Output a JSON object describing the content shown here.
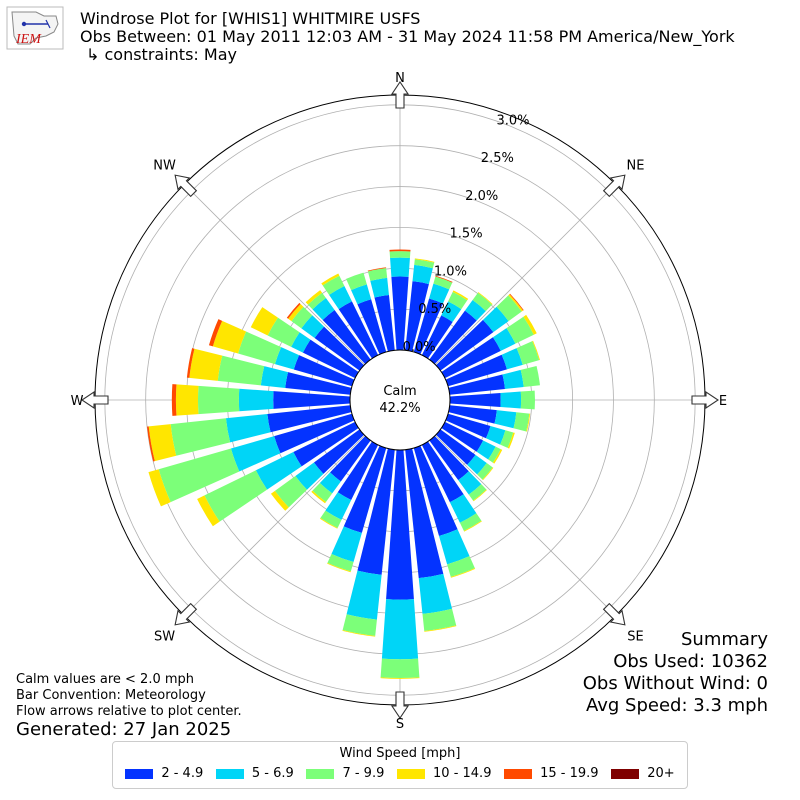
{
  "header": {
    "logo_text": "IEM",
    "title": "Windrose Plot for [WHIS1] WHITMIRE USFS",
    "subtitle": "Obs Between: 01 May 2011 12:03 AM - 31 May 2024 11:58 PM America/New_York",
    "constraints": "↳ constraints: May"
  },
  "notes": {
    "line1": "Calm values are < 2.0 mph",
    "line2": "Bar Convention: Meteorology",
    "line3": "Flow arrows relative to plot center.",
    "generated": "Generated: 27 Jan 2025"
  },
  "summary": {
    "heading": "Summary",
    "obs_used": "Obs Used: 10362",
    "obs_without_wind": "Obs Without Wind: 0",
    "avg_speed": "Avg Speed: 3.3 mph"
  },
  "legend": {
    "title": "Wind Speed [mph]",
    "items": [
      {
        "label": "2 - 4.9",
        "color": "#0433ff"
      },
      {
        "label": "5 - 6.9",
        "color": "#00d5f7"
      },
      {
        "label": "7 - 9.9",
        "color": "#7cff79"
      },
      {
        "label": "10 - 14.9",
        "color": "#ffe600"
      },
      {
        "label": "15 - 19.9",
        "color": "#ff4a00"
      },
      {
        "label": "20+",
        "color": "#7f0000"
      }
    ]
  },
  "chart_data": {
    "type": "windrose",
    "calm_label": "Calm",
    "calm_value": "42.2%",
    "radial_ticks": [
      "0.0%",
      "0.5%",
      "1.0%",
      "1.5%",
      "2.0%",
      "2.5%",
      "3.0%"
    ],
    "radial_tick_values": [
      0,
      0.5,
      1.0,
      1.5,
      2.0,
      2.5,
      3.0
    ],
    "rmax": 3.12,
    "direction_labels": [
      "N",
      "NE",
      "E",
      "SE",
      "S",
      "SW",
      "W",
      "NW"
    ],
    "directions_deg": [
      0,
      10,
      20,
      30,
      40,
      50,
      60,
      70,
      80,
      90,
      100,
      110,
      120,
      130,
      140,
      150,
      160,
      170,
      180,
      190,
      200,
      210,
      220,
      230,
      240,
      250,
      260,
      270,
      280,
      290,
      300,
      310,
      320,
      330,
      340,
      350
    ],
    "speed_bins": [
      "2 - 4.9",
      "5 - 6.9",
      "7 - 9.9",
      "10 - 14.9",
      "15 - 19.9",
      "20+"
    ],
    "cumulative_percent": [
      [
        0.9,
        1.13,
        1.21,
        1.21,
        1.23,
        1.23
      ],
      [
        0.85,
        1.05,
        1.12,
        1.13,
        1.13,
        1.13
      ],
      [
        0.68,
        0.87,
        0.96,
        0.96,
        0.97,
        0.97
      ],
      [
        0.54,
        0.73,
        0.86,
        0.88,
        0.88,
        0.88
      ],
      [
        0.74,
        0.9,
        1.01,
        1.02,
        1.02,
        1.02
      ],
      [
        0.8,
        1.03,
        1.23,
        1.25,
        1.26,
        1.26
      ],
      [
        0.76,
        0.96,
        1.21,
        1.25,
        1.25,
        1.25
      ],
      [
        0.75,
        0.95,
        1.16,
        1.17,
        1.17,
        1.17
      ],
      [
        0.68,
        0.91,
        1.11,
        1.11,
        1.11,
        1.11
      ],
      [
        0.62,
        0.87,
        1.04,
        1.04,
        1.04,
        1.04
      ],
      [
        0.58,
        0.82,
        0.98,
        0.99,
        0.99,
        0.99
      ],
      [
        0.54,
        0.73,
        0.83,
        0.85,
        0.85,
        0.85
      ],
      [
        0.52,
        0.69,
        0.76,
        0.78,
        0.78,
        0.78
      ],
      [
        0.53,
        0.7,
        0.79,
        0.8,
        0.8,
        0.8
      ],
      [
        0.6,
        0.82,
        0.91,
        0.92,
        0.92,
        0.92
      ],
      [
        0.78,
        1.06,
        1.17,
        1.18,
        1.18,
        1.18
      ],
      [
        1.12,
        1.48,
        1.64,
        1.65,
        1.65,
        1.65
      ],
      [
        1.58,
        2.02,
        2.23,
        2.24,
        2.24,
        2.24
      ],
      [
        1.83,
        2.56,
        2.79,
        2.8,
        2.8,
        2.8
      ],
      [
        1.54,
        2.09,
        2.29,
        2.3,
        2.3,
        2.3
      ],
      [
        1.08,
        1.45,
        1.57,
        1.58,
        1.58,
        1.58
      ],
      [
        0.75,
        1.02,
        1.13,
        1.14,
        1.14,
        1.14
      ],
      [
        0.62,
        0.8,
        0.93,
        0.95,
        0.95,
        0.95
      ],
      [
        0.69,
        0.97,
        1.28,
        1.34,
        1.34,
        1.34
      ],
      [
        0.84,
        1.35,
        2.05,
        2.15,
        2.15,
        2.15
      ],
      [
        0.99,
        1.54,
        2.46,
        2.59,
        2.59,
        2.59
      ],
      [
        1.02,
        1.53,
        2.21,
        2.48,
        2.5,
        2.5
      ],
      [
        0.94,
        1.36,
        1.86,
        2.13,
        2.18,
        2.18
      ],
      [
        0.8,
        1.1,
        1.63,
        1.98,
        2.01,
        2.01
      ],
      [
        0.74,
        0.98,
        1.45,
        1.77,
        1.82,
        1.82
      ],
      [
        0.71,
        0.87,
        1.19,
        1.42,
        1.42,
        1.42
      ],
      [
        0.68,
        0.88,
        1.03,
        1.08,
        1.1,
        1.1
      ],
      [
        0.75,
        0.93,
        1.01,
        1.05,
        1.05,
        1.05
      ],
      [
        0.73,
        0.94,
        1.08,
        1.11,
        1.11,
        1.11
      ],
      [
        0.67,
        0.86,
        1.01,
        1.01,
        1.01,
        1.01
      ],
      [
        0.68,
        0.89,
        1.01,
        1.01,
        1.02,
        1.02
      ]
    ]
  }
}
